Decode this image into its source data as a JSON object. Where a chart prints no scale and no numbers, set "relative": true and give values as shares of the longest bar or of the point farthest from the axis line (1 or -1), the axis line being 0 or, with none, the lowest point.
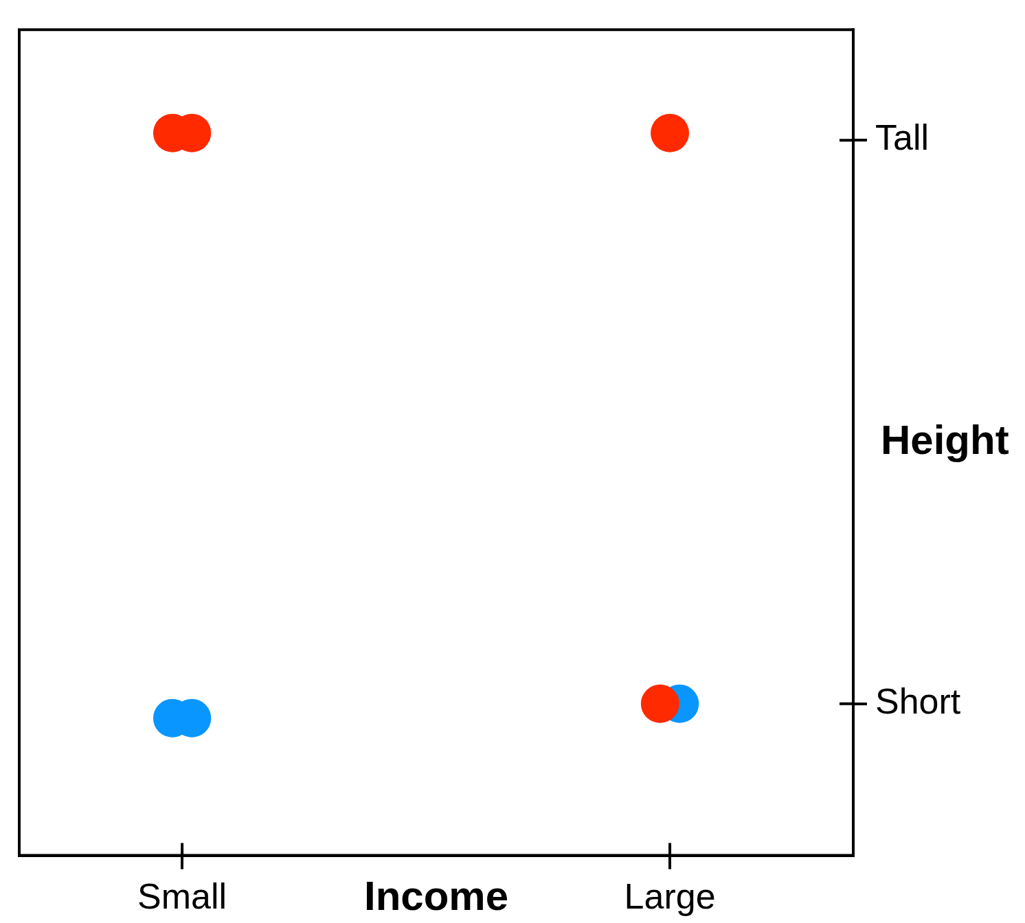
{
  "chart_data": {
    "type": "scatter",
    "xlabel": "Income",
    "ylabel": "Height",
    "marker": "circle",
    "relative": true,
    "categories": [
      "Small",
      "Large"
    ],
    "ref_lines": [
      {
        "axis": "y",
        "value": 0.99,
        "label": "Tall"
      },
      {
        "axis": "y",
        "value": 0.21,
        "label": "Short"
      }
    ],
    "series": [
      {
        "color": "#ff2a00",
        "x": [
          "Small",
          "Small",
          "Large",
          "Large"
        ],
        "values": [
          1,
          1,
          1,
          0.21
        ]
      },
      {
        "color": "#0a96ff",
        "x": [
          "Small",
          "Small",
          "Large"
        ],
        "values": [
          0.19,
          0.19,
          0.21
        ]
      }
    ]
  }
}
